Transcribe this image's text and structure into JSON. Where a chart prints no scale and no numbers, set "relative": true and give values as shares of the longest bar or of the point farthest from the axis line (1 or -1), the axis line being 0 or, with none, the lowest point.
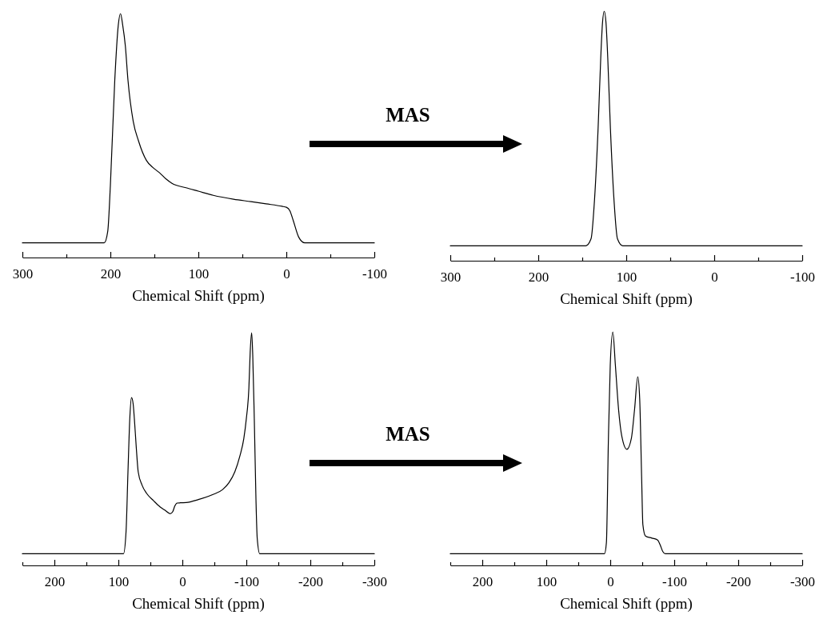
{
  "chart_data": [
    {
      "type": "line",
      "relative": true,
      "xlabel": "Chemical Shift (ppm)",
      "xlim": [
        300,
        -100
      ],
      "xticks": [
        300,
        {
          "value": 250,
          "label": null
        },
        200,
        {
          "value": 150,
          "label": null
        },
        100,
        {
          "value": 50,
          "label": null
        },
        0,
        {
          "value": -50,
          "label": null
        },
        -100
      ],
      "tick_labels": "x",
      "color": "#000000",
      "annotations": [
        "MAS"
      ],
      "x": [
        300,
        207,
        203,
        200,
        195,
        191,
        188.5,
        186,
        183,
        180,
        174,
        168,
        159,
        152,
        144,
        137,
        130,
        114,
        100,
        83,
        60,
        40,
        23,
        5,
        0,
        -4,
        -8,
        -14,
        -21,
        -100
      ],
      "values": [
        0.06,
        0.06,
        0.107,
        0.295,
        0.727,
        0.953,
        1,
        0.953,
        0.868,
        0.727,
        0.558,
        0.478,
        0.398,
        0.37,
        0.347,
        0.323,
        0.304,
        0.286,
        0.272,
        0.255,
        0.239,
        0.229,
        0.22,
        0.21,
        0.206,
        0.192,
        0.15,
        0.084,
        0.06,
        0.06
      ]
    },
    {
      "type": "line",
      "relative": true,
      "xlabel": "Chemical Shift (ppm)",
      "xlim": [
        300,
        -100
      ],
      "xticks": [
        300,
        {
          "value": 250,
          "label": null
        },
        200,
        {
          "value": 150,
          "label": null
        },
        100,
        {
          "value": 50,
          "label": null
        },
        0,
        {
          "value": -50,
          "label": null
        },
        -100
      ],
      "tick_labels": "x",
      "color": "#000000",
      "x": [
        300,
        146,
        140,
        136,
        132,
        129,
        127,
        125,
        123,
        121,
        118,
        114,
        110,
        104,
        -100
      ],
      "values": [
        0.06,
        0.06,
        0.088,
        0.248,
        0.53,
        0.812,
        0.953,
        1,
        0.953,
        0.812,
        0.53,
        0.248,
        0.088,
        0.06,
        0.06
      ]
    },
    {
      "type": "line",
      "relative": true,
      "xlabel": "Chemical Shift (ppm)",
      "xlim": [
        250,
        -300
      ],
      "xticks": [
        {
          "value": 250,
          "label": null
        },
        200,
        {
          "value": 150,
          "label": null
        },
        100,
        {
          "value": 50,
          "label": null
        },
        0,
        {
          "value": -50,
          "label": null
        },
        -100,
        {
          "value": -150,
          "label": null
        },
        -200,
        {
          "value": -250,
          "label": null
        },
        -300
      ],
      "tick_labels": "x",
      "color": "#000000",
      "annotations": [
        "MAS"
      ],
      "x": [
        250,
        92,
        88,
        85,
        82,
        79.5,
        77,
        75,
        72,
        69,
        63,
        56,
        45,
        35,
        27,
        19,
        15,
        12,
        8,
        3,
        -6,
        -25,
        -48,
        -63,
        -73,
        -82,
        -90,
        -96,
        -100,
        -104,
        -106,
        -108.3,
        -110,
        -112.5,
        -115,
        -117,
        -121,
        -300
      ],
      "values": [
        0.05,
        0.05,
        0.145,
        0.402,
        0.639,
        0.721,
        0.696,
        0.63,
        0.506,
        0.402,
        0.345,
        0.31,
        0.278,
        0.252,
        0.237,
        0.222,
        0.231,
        0.254,
        0.268,
        0.269,
        0.27,
        0.283,
        0.305,
        0.326,
        0.356,
        0.402,
        0.471,
        0.544,
        0.631,
        0.763,
        0.915,
        1,
        0.905,
        0.62,
        0.288,
        0.117,
        0.05,
        0.05
      ]
    },
    {
      "type": "line",
      "relative": true,
      "xlabel": "Chemical Shift (ppm)",
      "xlim": [
        250,
        -300
      ],
      "xticks": [
        {
          "value": 250,
          "label": null
        },
        200,
        {
          "value": 150,
          "label": null
        },
        100,
        {
          "value": 50,
          "label": null
        },
        0,
        {
          "value": -50,
          "label": null
        },
        -100,
        {
          "value": -150,
          "label": null
        },
        -200,
        {
          "value": -250,
          "label": null
        },
        -300
      ],
      "tick_labels": "x",
      "color": "#000000",
      "x": [
        250,
        9,
        6,
        3,
        0,
        -4,
        -8,
        -13,
        -18,
        -26,
        -33,
        -38,
        -43,
        -46,
        -49,
        -51,
        -55,
        -65,
        -74,
        -78,
        -82,
        -86,
        -300
      ],
      "values": [
        0.05,
        0.05,
        0.098,
        0.525,
        0.858,
        1,
        0.858,
        0.668,
        0.554,
        0.497,
        0.544,
        0.668,
        0.808,
        0.715,
        0.383,
        0.174,
        0.126,
        0.117,
        0.109,
        0.088,
        0.06,
        0.05,
        0.05
      ]
    }
  ]
}
